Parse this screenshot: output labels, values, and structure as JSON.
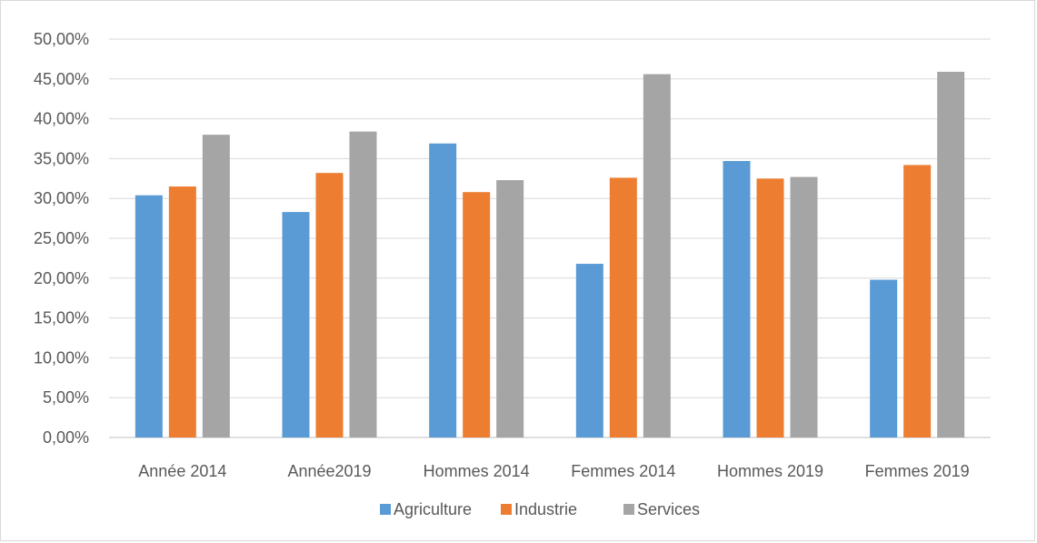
{
  "chart_data": {
    "type": "bar",
    "categories": [
      "Année 2014",
      "Année2019",
      "Hommes 2014",
      "Femmes 2014",
      "Hommes 2019",
      "Femmes 2019"
    ],
    "series": [
      {
        "name": "Agriculture",
        "color": "#5b9bd5",
        "values": [
          30.4,
          28.3,
          36.9,
          21.8,
          34.7,
          19.8
        ]
      },
      {
        "name": "Industrie",
        "color": "#ed7d31",
        "values": [
          31.5,
          33.2,
          30.8,
          32.6,
          32.5,
          34.2
        ]
      },
      {
        "name": "Services",
        "color": "#a5a5a5",
        "values": [
          38.0,
          38.4,
          32.3,
          45.6,
          32.7,
          45.9
        ]
      }
    ],
    "ylim": [
      0,
      50
    ],
    "yticks": [
      0,
      5,
      10,
      15,
      20,
      25,
      30,
      35,
      40,
      45,
      50
    ],
    "ytick_labels": [
      "0,00%",
      "5,00%",
      "10,00%",
      "15,00%",
      "20,00%",
      "25,00%",
      "30,00%",
      "35,00%",
      "40,00%",
      "45,00%",
      "50,00%"
    ],
    "grid": true,
    "legend_position": "bottom",
    "title": "",
    "xlabel": "",
    "ylabel": ""
  }
}
